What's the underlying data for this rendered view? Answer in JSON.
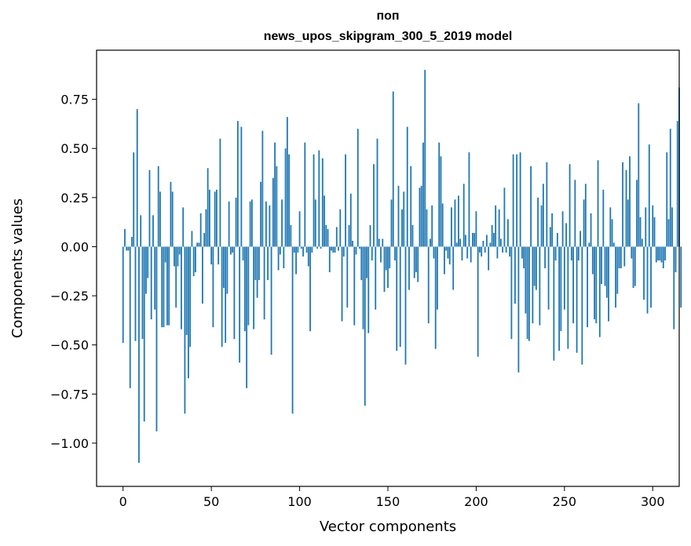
{
  "chart_data": {
    "type": "bar",
    "title": "поп",
    "subtitle": "news_upos_skipgram_300_5_2019 model",
    "xlabel": "Vector components",
    "ylabel": "Components values",
    "xlim": [
      -15,
      315
    ],
    "ylim": [
      -1.22,
      1.0
    ],
    "xticks": [
      0,
      50,
      100,
      150,
      200,
      250,
      300
    ],
    "yticks": [
      -1.0,
      -0.75,
      -0.5,
      -0.25,
      0.0,
      0.25,
      0.5,
      0.75
    ],
    "ytick_labels": [
      "−1.00",
      "−0.75",
      "−0.50",
      "−0.25",
      "0.00",
      "0.25",
      "0.50",
      "0.75"
    ],
    "grid": false,
    "color": "#1f77b4",
    "x_start": 0,
    "values": [
      -0.49,
      0.09,
      -0.02,
      -0.02,
      -0.72,
      0.05,
      0.48,
      -0.48,
      0.7,
      -1.1,
      0.16,
      -0.47,
      -0.89,
      -0.24,
      -0.16,
      0.39,
      -0.37,
      0.16,
      -0.32,
      -0.94,
      0.41,
      0.28,
      -0.41,
      -0.41,
      -0.08,
      -0.4,
      -0.4,
      0.33,
      0.28,
      -0.1,
      -0.31,
      -0.1,
      -0.04,
      -0.42,
      0.2,
      -0.85,
      -0.45,
      -0.67,
      -0.51,
      0.08,
      -0.15,
      -0.13,
      0.02,
      0.02,
      0.17,
      -0.29,
      0.07,
      0.19,
      0.4,
      0.29,
      -0.09,
      -0.41,
      0.28,
      0.29,
      -0.09,
      0.55,
      -0.51,
      -0.21,
      -0.49,
      -0.24,
      0.23,
      -0.04,
      -0.03,
      -0.47,
      0.25,
      0.64,
      -0.59,
      0.61,
      -0.07,
      -0.43,
      -0.72,
      -0.4,
      0.23,
      0.24,
      -0.42,
      -0.17,
      -0.26,
      -0.17,
      0.33,
      0.59,
      -0.37,
      0.23,
      -0.17,
      0.21,
      -0.55,
      0.35,
      0.53,
      0.41,
      -0.12,
      -0.04,
      0.24,
      -0.11,
      0.5,
      0.66,
      0.47,
      0.11,
      -0.85,
      -0.03,
      -0.14,
      -0.03,
      0.18,
      -0.01,
      -0.05,
      0.53,
      -0.03,
      -0.1,
      -0.43,
      -0.03,
      0.47,
      0.24,
      -0.01,
      0.49,
      -0.01,
      0.45,
      0.26,
      0.11,
      0.09,
      -0.13,
      -0.02,
      -0.03,
      -0.03,
      0.1,
      -0.02,
      0.19,
      -0.38,
      -0.05,
      0.47,
      -0.31,
      0.11,
      0.27,
      0.03,
      -0.4,
      -0.04,
      0.6,
      -0.01,
      -0.17,
      -0.42,
      -0.81,
      -0.16,
      -0.44,
      0.11,
      -0.07,
      0.42,
      -0.32,
      0.55,
      0.04,
      -0.08,
      0.04,
      -0.23,
      -0.12,
      -0.21,
      -0.11,
      0.24,
      0.79,
      -0.07,
      -0.53,
      0.31,
      -0.51,
      0.19,
      0.28,
      -0.6,
      0.61,
      -0.22,
      0.41,
      0.11,
      -0.16,
      -0.13,
      -0.18,
      0.3,
      0.31,
      0.53,
      0.9,
      0.19,
      -0.39,
      0.04,
      0.21,
      -0.06,
      -0.52,
      -0.32,
      0.53,
      0.46,
      0.22,
      -0.14,
      -0.02,
      -0.06,
      -0.09,
      0.2,
      -0.22,
      0.24,
      0.02,
      0.26,
      0.04,
      -0.07,
      0.32,
      0.06,
      -0.06,
      0.48,
      -0.08,
      0.07,
      0.07,
      0.18,
      -0.56,
      -0.03,
      -0.05,
      0.03,
      -0.03,
      0.06,
      -0.12,
      0.02,
      0.11,
      0.07,
      0.21,
      -0.06,
      0.19,
      0.04,
      -0.03,
      0.3,
      -0.03,
      0.14,
      -0.05,
      -0.47,
      0.47,
      -0.29,
      0.47,
      -0.64,
      0.48,
      -0.06,
      -0.11,
      -0.34,
      -0.47,
      -0.48,
      0.41,
      -0.39,
      -0.2,
      -0.22,
      0.25,
      -0.4,
      0.21,
      0.32,
      -0.11,
      0.43,
      -0.32,
      0.1,
      0.17,
      -0.58,
      -0.07,
      0.07,
      -0.53,
      -0.43,
      0.18,
      -0.32,
      0.12,
      -0.52,
      0.42,
      -0.07,
      -0.39,
      0.34,
      -0.54,
      -0.07,
      0.08,
      -0.6,
      0.24,
      0.32,
      -0.41,
      0.02,
      0.17,
      -0.14,
      -0.37,
      -0.39,
      0.44,
      -0.46,
      -0.19,
      0.29,
      -0.2,
      -0.26,
      -0.38,
      0.2,
      0.14,
      0.02,
      -0.31,
      -0.24,
      -0.11,
      -0.11,
      0.43,
      -0.1,
      0.39,
      0.24,
      0.46,
      -0.06,
      -0.21,
      -0.2,
      0.34,
      0.73,
      0.15,
      0.04,
      -0.27,
      0.2,
      -0.34,
      0.52,
      -0.31,
      0.21,
      0.15,
      -0.08,
      -0.07,
      -0.07,
      -0.08,
      -0.11,
      -0.07,
      0.48,
      0.14,
      0.6,
      0.2,
      -0.42,
      -0.13,
      0.64,
      0.81,
      -0.31
    ]
  }
}
